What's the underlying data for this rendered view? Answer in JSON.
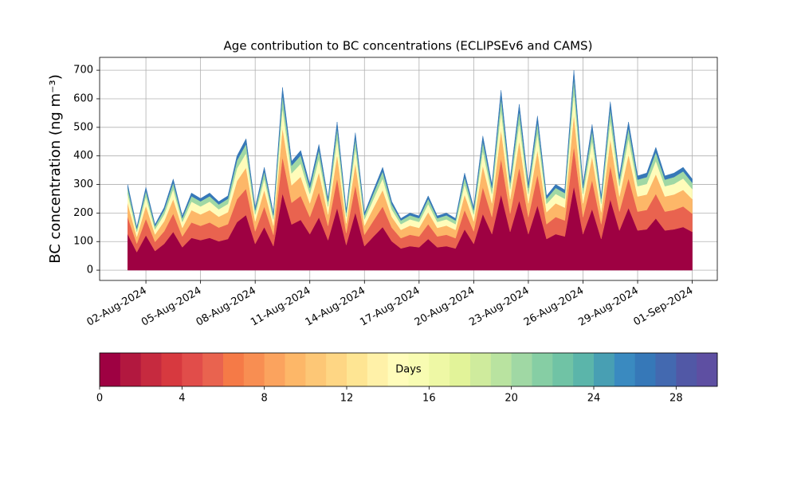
{
  "chart_data": {
    "type": "stacked_area",
    "title": "Age contribution to BC concentrations (ECLIPSEv6 and CAMS)",
    "y_label": "BC concentration (ng m⁻³)",
    "x": [
      "2024-08-01T00:00",
      "2024-08-01T12:00",
      "2024-08-02T00:00",
      "2024-08-02T12:00",
      "2024-08-03T00:00",
      "2024-08-03T12:00",
      "2024-08-04T00:00",
      "2024-08-04T12:00",
      "2024-08-05T00:00",
      "2024-08-05T12:00",
      "2024-08-06T00:00",
      "2024-08-06T12:00",
      "2024-08-07T00:00",
      "2024-08-07T12:00",
      "2024-08-08T00:00",
      "2024-08-08T12:00",
      "2024-08-09T00:00",
      "2024-08-09T12:00",
      "2024-08-10T00:00",
      "2024-08-10T12:00",
      "2024-08-11T00:00",
      "2024-08-11T12:00",
      "2024-08-12T00:00",
      "2024-08-12T12:00",
      "2024-08-13T00:00",
      "2024-08-13T12:00",
      "2024-08-14T00:00",
      "2024-08-14T12:00",
      "2024-08-15T00:00",
      "2024-08-15T12:00",
      "2024-08-16T00:00",
      "2024-08-16T12:00",
      "2024-08-17T00:00",
      "2024-08-17T12:00",
      "2024-08-18T00:00",
      "2024-08-18T12:00",
      "2024-08-19T00:00",
      "2024-08-19T12:00",
      "2024-08-20T00:00",
      "2024-08-20T12:00",
      "2024-08-21T00:00",
      "2024-08-21T12:00",
      "2024-08-22T00:00",
      "2024-08-22T12:00",
      "2024-08-23T00:00",
      "2024-08-23T12:00",
      "2024-08-24T00:00",
      "2024-08-24T12:00",
      "2024-08-25T00:00",
      "2024-08-25T12:00",
      "2024-08-26T00:00",
      "2024-08-26T12:00",
      "2024-08-27T00:00",
      "2024-08-27T12:00",
      "2024-08-28T00:00",
      "2024-08-28T12:00",
      "2024-08-29T00:00",
      "2024-08-29T12:00",
      "2024-08-30T00:00",
      "2024-08-30T12:00",
      "2024-08-31T00:00",
      "2024-08-31T12:00",
      "2024-09-01T00:00"
    ],
    "series": [
      {
        "color": "#9e0142",
        "values": [
          126,
          63,
          122,
          67,
          92,
          134,
          80,
          113,
          105,
          113,
          101,
          109,
          168,
          193,
          92,
          151,
          84,
          269,
          160,
          176,
          126,
          185,
          105,
          218,
          88,
          202,
          84,
          118,
          151,
          101,
          76,
          84,
          80,
          109,
          80,
          84,
          76,
          143,
          92,
          197,
          126,
          265,
          134,
          244,
          126,
          227,
          109,
          126,
          118,
          294,
          126,
          214,
          109,
          248,
          139,
          218,
          139,
          143,
          181,
          139,
          143,
          151,
          134
        ]
      },
      {
        "color": "#e9634f",
        "values": [
          60,
          30,
          58,
          32,
          44,
          64,
          38,
          54,
          50,
          54,
          48,
          52,
          80,
          92,
          44,
          72,
          40,
          128,
          76,
          84,
          60,
          88,
          50,
          104,
          42,
          96,
          40,
          56,
          72,
          48,
          36,
          40,
          38,
          52,
          38,
          40,
          36,
          68,
          44,
          94,
          60,
          126,
          64,
          116,
          60,
          108,
          52,
          60,
          56,
          140,
          60,
          102,
          52,
          118,
          66,
          104,
          66,
          68,
          86,
          66,
          68,
          72,
          64
        ]
      },
      {
        "color": "#fdb768",
        "values": [
          48,
          24,
          46,
          26,
          35,
          51,
          30,
          43,
          40,
          43,
          38,
          42,
          64,
          74,
          35,
          58,
          32,
          102,
          61,
          67,
          48,
          70,
          40,
          83,
          34,
          77,
          32,
          45,
          58,
          38,
          29,
          32,
          30,
          42,
          30,
          32,
          29,
          54,
          35,
          75,
          48,
          101,
          51,
          93,
          48,
          86,
          42,
          48,
          45,
          112,
          48,
          82,
          42,
          94,
          53,
          83,
          53,
          54,
          69,
          53,
          54,
          58,
          51
        ]
      },
      {
        "color": "#fffcba",
        "values": [
          33,
          17,
          32,
          18,
          24,
          35,
          21,
          30,
          28,
          30,
          26,
          29,
          44,
          51,
          24,
          40,
          22,
          70,
          42,
          46,
          33,
          48,
          28,
          57,
          23,
          53,
          22,
          31,
          40,
          26,
          20,
          22,
          21,
          29,
          21,
          22,
          20,
          37,
          24,
          52,
          33,
          69,
          35,
          64,
          33,
          59,
          29,
          33,
          31,
          77,
          33,
          56,
          29,
          65,
          36,
          57,
          36,
          37,
          47,
          36,
          37,
          40,
          35
        ]
      },
      {
        "color": "#a0d8a4",
        "values": [
          21,
          11,
          20,
          11,
          15,
          22,
          13,
          19,
          18,
          19,
          17,
          18,
          28,
          32,
          15,
          25,
          14,
          45,
          27,
          29,
          21,
          31,
          18,
          36,
          15,
          34,
          14,
          20,
          25,
          17,
          13,
          14,
          13,
          18,
          13,
          14,
          13,
          24,
          15,
          33,
          21,
          44,
          22,
          41,
          21,
          38,
          18,
          21,
          20,
          49,
          21,
          36,
          18,
          41,
          23,
          36,
          23,
          24,
          30,
          23,
          24,
          25,
          22
        ]
      },
      {
        "color": "#3678b8",
        "values": [
          12,
          6,
          12,
          6,
          9,
          13,
          8,
          11,
          10,
          11,
          10,
          10,
          16,
          18,
          9,
          14,
          8,
          26,
          15,
          17,
          12,
          18,
          10,
          21,
          8,
          19,
          8,
          11,
          14,
          10,
          7,
          8,
          8,
          10,
          8,
          8,
          7,
          14,
          9,
          19,
          12,
          25,
          13,
          23,
          12,
          22,
          10,
          12,
          11,
          28,
          12,
          20,
          10,
          24,
          13,
          21,
          13,
          14,
          17,
          13,
          14,
          14,
          13
        ]
      }
    ],
    "xlim": [
      "2024-07-30T11:00",
      "2024-09-02T09:00"
    ],
    "xticks": [
      {
        "value": "2024-08-02T00:00",
        "label": "02-Aug-2024"
      },
      {
        "value": "2024-08-05T00:00",
        "label": "05-Aug-2024"
      },
      {
        "value": "2024-08-08T00:00",
        "label": "08-Aug-2024"
      },
      {
        "value": "2024-08-11T00:00",
        "label": "11-Aug-2024"
      },
      {
        "value": "2024-08-14T00:00",
        "label": "14-Aug-2024"
      },
      {
        "value": "2024-08-17T00:00",
        "label": "17-Aug-2024"
      },
      {
        "value": "2024-08-20T00:00",
        "label": "20-Aug-2024"
      },
      {
        "value": "2024-08-23T00:00",
        "label": "23-Aug-2024"
      },
      {
        "value": "2024-08-26T00:00",
        "label": "26-Aug-2024"
      },
      {
        "value": "2024-08-29T00:00",
        "label": "29-Aug-2024"
      },
      {
        "value": "2024-09-01T00:00",
        "label": "01-Sep-2024"
      }
    ],
    "ylim": [
      -36,
      745
    ],
    "yticks": [
      0,
      100,
      200,
      300,
      400,
      500,
      600,
      700
    ],
    "grid": true,
    "colorbar": {
      "label": "Days",
      "lim": [
        0,
        30
      ],
      "ticks": [
        0,
        4,
        8,
        12,
        16,
        20,
        24,
        28
      ],
      "colors": [
        "#9e0142",
        "#b2183f",
        "#c62a3f",
        "#d7393f",
        "#e14d4a",
        "#e9634f",
        "#f57a47",
        "#f88e52",
        "#fba35e",
        "#fdb768",
        "#fdc776",
        "#fed684",
        "#fee593",
        "#fff1a8",
        "#fffcba",
        "#f8fcb2",
        "#eef8a5",
        "#e2f399",
        "#cfeb9d",
        "#b9e3a0",
        "#a0d8a4",
        "#86cea4",
        "#70c3a5",
        "#5bb5aa",
        "#489fb3",
        "#3a8ac0",
        "#3678b8",
        "#4369b0",
        "#5158a6",
        "#5e4fa2"
      ]
    }
  }
}
